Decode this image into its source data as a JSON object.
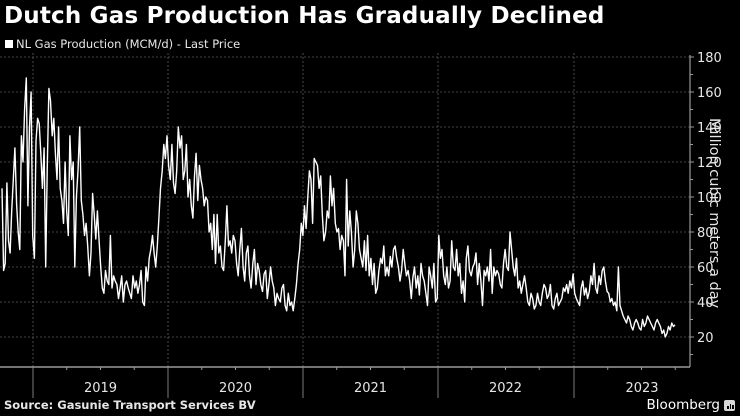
{
  "header": {
    "title": "Dutch Gas Production Has Gradually Declined",
    "legend_label": "NL Gas Production (MCM/d) - Last Price",
    "legend_color": "#ffffff"
  },
  "footer": {
    "source": "Source: Gasunie Transport Services BV",
    "brand": "Bloomberg"
  },
  "colors": {
    "background": "#000000",
    "line": "#ffffff",
    "grid": "#5a5a5a",
    "axis": "#9a9a9a"
  },
  "chart_data": {
    "type": "line",
    "title": "Dutch Gas Production Has Gradually Declined",
    "xlabel": "",
    "ylabel": "Million cubic meters a day",
    "ylim": [
      0,
      180
    ],
    "y_ticks": [
      20,
      40,
      60,
      80,
      100,
      120,
      140,
      160,
      180
    ],
    "x_tick_labels": [
      "2019",
      "2020",
      "2021",
      "2022",
      "2023"
    ],
    "grid": true,
    "legend_position": "top-left",
    "series": [
      {
        "name": "NL Gas Production (MCM/d) - Last Price",
        "x_start": "2018-10",
        "x_end": "2023-06",
        "values": [
          105,
          58,
          62,
          108,
          75,
          68,
          92,
          110,
          128,
          96,
          80,
          70,
          135,
          120,
          150,
          168,
          95,
          140,
          160,
          78,
          65,
          132,
          145,
          142,
          125,
          105,
          128,
          60,
          118,
          162,
          155,
          135,
          145,
          125,
          110,
          140,
          105,
          98,
          85,
          120,
          92,
          78,
          135,
          110,
          120,
          60,
          100,
          115,
          140,
          98,
          90,
          78,
          85,
          72,
          55,
          68,
          102,
          90,
          76,
          92,
          75,
          60,
          48,
          45,
          58,
          52,
          50,
          78,
          48,
          55,
          52,
          50,
          42,
          48,
          55,
          40,
          50,
          52,
          48,
          45,
          42,
          55,
          48,
          52,
          45,
          50,
          58,
          40,
          38,
          60,
          52,
          65,
          70,
          78,
          68,
          60,
          72,
          88,
          105,
          115,
          130,
          122,
          135,
          118,
          110,
          130,
          108,
          102,
          115,
          140,
          128,
          135,
          110,
          115,
          130,
          100,
          110,
          95,
          88,
          112,
          125,
          98,
          118,
          110,
          105,
          95,
          100,
          98,
          80,
          85,
          70,
          90,
          62,
          90,
          68,
          72,
          60,
          58,
          75,
          95,
          72,
          75,
          68,
          78,
          75,
          62,
          55,
          70,
          82,
          60,
          52,
          68,
          72,
          55,
          48,
          62,
          70,
          50,
          62,
          58,
          50,
          46,
          56,
          58,
          42,
          50,
          60,
          52,
          48,
          38,
          45,
          42,
          40,
          48,
          50,
          38,
          35,
          45,
          38,
          40,
          35,
          42,
          50,
          62,
          70,
          85,
          78,
          95,
          82,
          100,
          115,
          110,
          85,
          122,
          120,
          118,
          105,
          112,
          90,
          75,
          80,
          92,
          88,
          112,
          95,
          105,
          85,
          80,
          82,
          70,
          78,
          75,
          55,
          110,
          72,
          92,
          80,
          60,
          70,
          92,
          85,
          70,
          65,
          60,
          75,
          58,
          78,
          55,
          65,
          50,
          62,
          45,
          48,
          58,
          65,
          62,
          72,
          55,
          60,
          55,
          66,
          60,
          70,
          72,
          65,
          60,
          52,
          58,
          70,
          62,
          55,
          58,
          52,
          42,
          54,
          60,
          48,
          55,
          44,
          62,
          55,
          52,
          45,
          38,
          60,
          55,
          48,
          62,
          40,
          42,
          78,
          65,
          70,
          55,
          50,
          60,
          48,
          52,
          75,
          60,
          58,
          70,
          55,
          62,
          45,
          52,
          40,
          65,
          72,
          58,
          55,
          60,
          62,
          68,
          50,
          62,
          52,
          38,
          58,
          55,
          60,
          52,
          70,
          45,
          60,
          55,
          58,
          56,
          50,
          48,
          62,
          70,
          60,
          58,
          80,
          70,
          60,
          55,
          65,
          48,
          52,
          45,
          50,
          55,
          48,
          40,
          38,
          45,
          42,
          36,
          38,
          45,
          40,
          38,
          45,
          50,
          48,
          42,
          44,
          50,
          38,
          36,
          42,
          45,
          38,
          40,
          42,
          48,
          46,
          50,
          45,
          52,
          48,
          56,
          45,
          42,
          40,
          38,
          48,
          52,
          44,
          48,
          42,
          46,
          55,
          50,
          62,
          48,
          45,
          55,
          50,
          58,
          60,
          52,
          46,
          45,
          40,
          42,
          38,
          40,
          35,
          60,
          38,
          35,
          32,
          30,
          28,
          32,
          30,
          26,
          24,
          28,
          30,
          28,
          25,
          24,
          30,
          26,
          28,
          32,
          30,
          28,
          26,
          24,
          28,
          30,
          28,
          26,
          22,
          24,
          20,
          22,
          26,
          24,
          28,
          26,
          27
        ]
      }
    ]
  }
}
